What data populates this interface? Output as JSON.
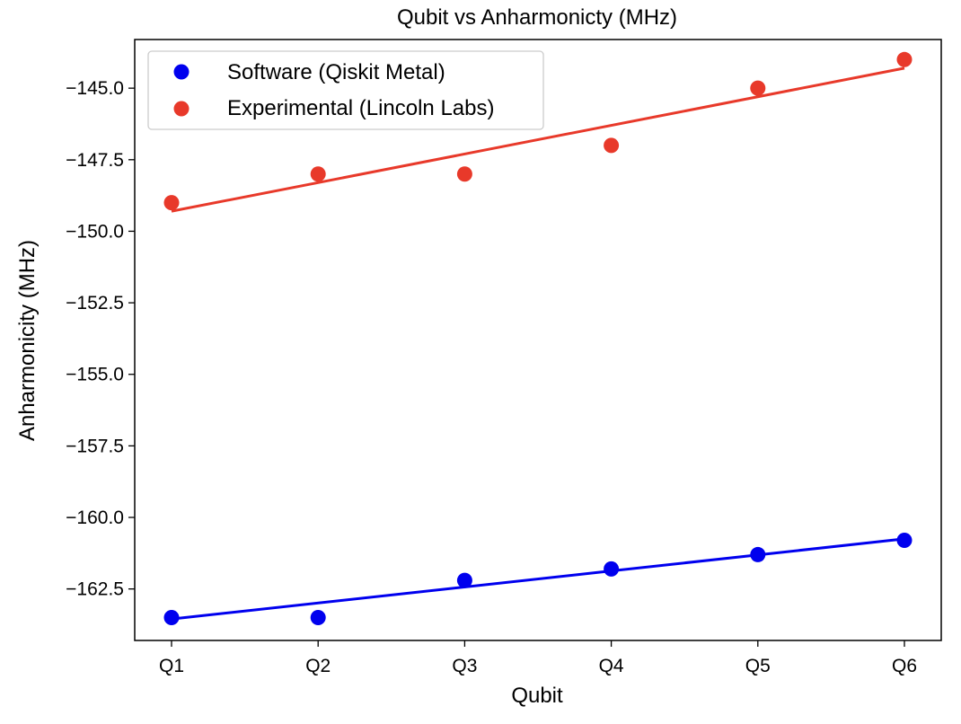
{
  "chart_data": {
    "type": "scatter",
    "title": "Qubit vs Anharmonicty (MHz)",
    "xlabel": "Qubit",
    "ylabel": "Anharmonicity (MHz)",
    "categories": [
      "Q1",
      "Q2",
      "Q3",
      "Q4",
      "Q5",
      "Q6"
    ],
    "ylim": [
      -164.3,
      -143.3
    ],
    "yticks": [
      -145.0,
      -147.5,
      -150.0,
      -152.5,
      -155.0,
      -157.5,
      -160.0,
      -162.5
    ],
    "ytick_labels": [
      "−145.0",
      "−147.5",
      "−150.0",
      "−152.5",
      "−155.0",
      "−157.5",
      "−160.0",
      "−162.5"
    ],
    "grid": false,
    "legend_position": "top-left",
    "series": [
      {
        "name": "Software (Qiskit Metal)",
        "color": "#0000ee",
        "values": [
          -163.5,
          -163.5,
          -162.2,
          -161.8,
          -161.3,
          -160.8
        ],
        "fit_line": [
          -163.55,
          -160.75
        ]
      },
      {
        "name": "Experimental (Lincoln Labs)",
        "color": "#e8392a",
        "values": [
          -149.0,
          -148.0,
          -148.0,
          -147.0,
          -145.0,
          -144.0
        ],
        "fit_line": [
          -149.3,
          -144.3
        ]
      }
    ]
  }
}
